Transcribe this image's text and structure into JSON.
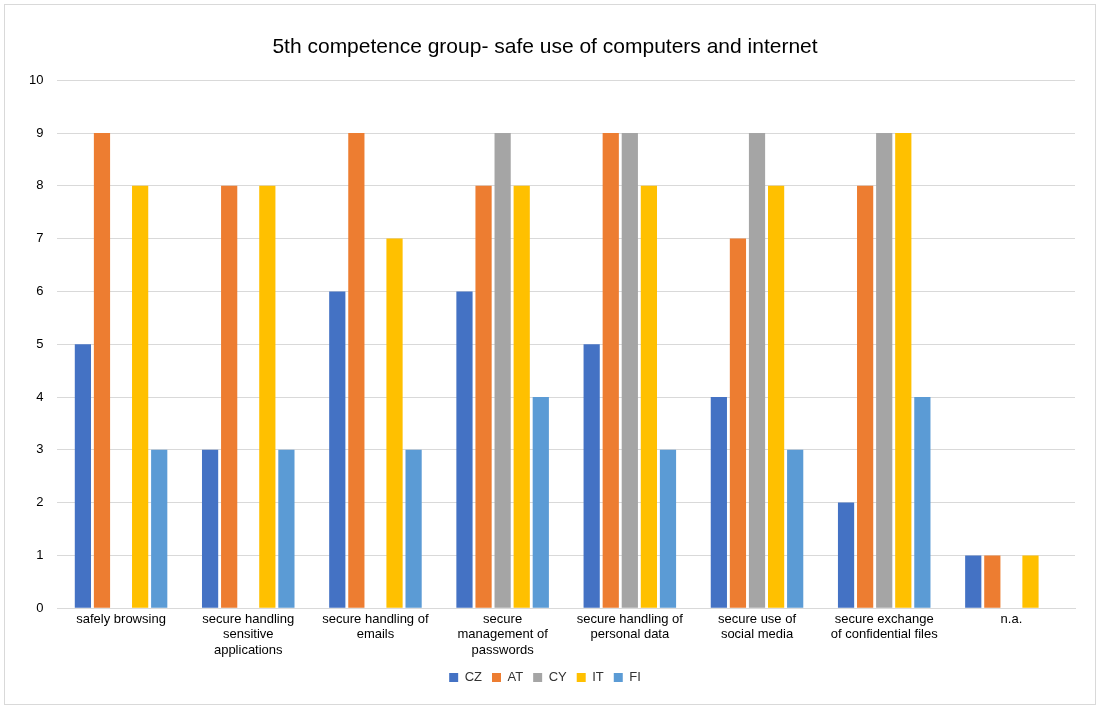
{
  "chart_data": {
    "type": "bar",
    "title": "5th competence group- safe use of computers and internet",
    "categories": [
      "safely browsing",
      "secure handling sensitive applications",
      "secure handling of emails",
      "secure management of passwords",
      "secure handling of personal data",
      "secure use of social media",
      "secure exchange of confidential files",
      "n.a."
    ],
    "series": [
      {
        "name": "CZ",
        "color": "#4472c4",
        "values": [
          5,
          3,
          6,
          6,
          5,
          4,
          2,
          1
        ]
      },
      {
        "name": "AT",
        "color": "#ed7d31",
        "values": [
          9,
          8,
          9,
          8,
          9,
          7,
          8,
          1
        ]
      },
      {
        "name": "CY",
        "color": "#a5a5a5",
        "values": [
          0,
          0,
          0,
          9,
          9,
          9,
          9,
          0
        ]
      },
      {
        "name": "IT",
        "color": "#ffc000",
        "values": [
          8,
          8,
          7,
          8,
          8,
          8,
          9,
          1
        ]
      },
      {
        "name": "FI",
        "color": "#5b9bd5",
        "values": [
          3,
          3,
          3,
          4,
          3,
          3,
          4,
          0
        ]
      }
    ],
    "ylim": [
      0,
      10
    ],
    "yticks": [
      0,
      1,
      2,
      3,
      4,
      5,
      6,
      7,
      8,
      9,
      10
    ],
    "grid": "y",
    "legend": "bottom"
  }
}
